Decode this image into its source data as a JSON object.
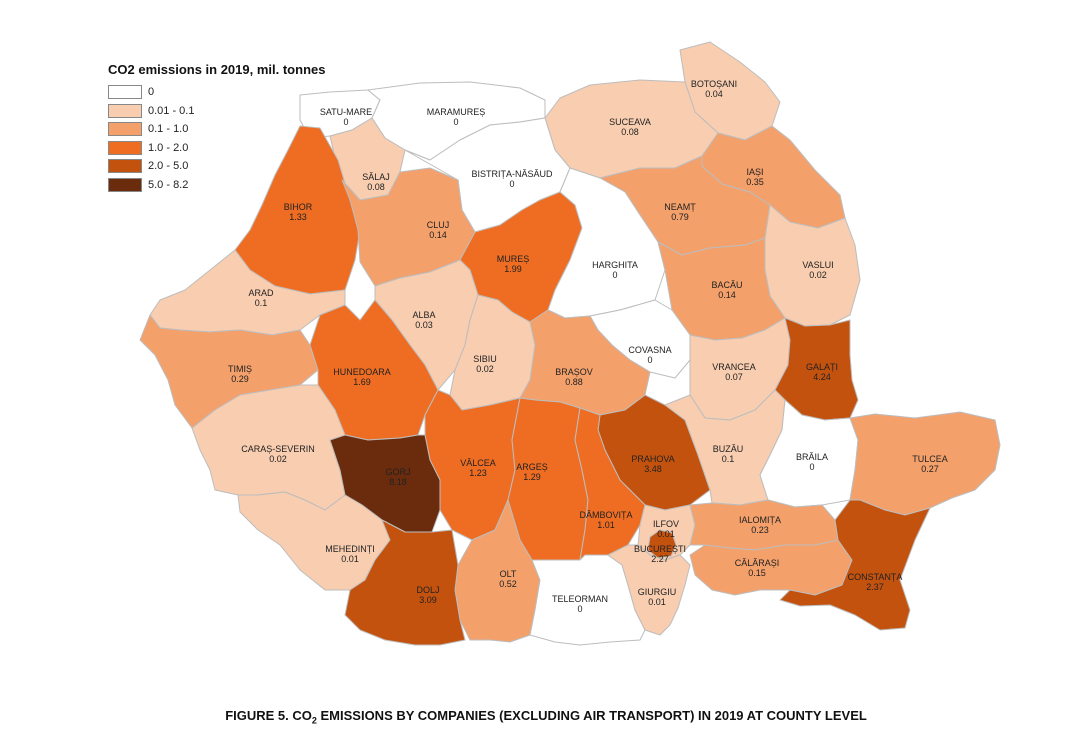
{
  "legend": {
    "title": "CO2 emissions in 2019, mil. tonnes",
    "classes": [
      {
        "label": "0",
        "color": "#ffffff"
      },
      {
        "label": "0.01 - 0.1",
        "color": "#f8cdb0"
      },
      {
        "label": "0.1 - 1.0",
        "color": "#f3a06b"
      },
      {
        "label": "1.0 - 2.0",
        "color": "#ee6d22"
      },
      {
        "label": "2.0 - 5.0",
        "color": "#c4520f"
      },
      {
        "label": "5.0 - 8.2",
        "color": "#6b2c0d"
      }
    ]
  },
  "counties": [
    {
      "id": "satu-mare",
      "name": "SATU-MARE",
      "value": "0",
      "cls": 0
    },
    {
      "id": "maramures",
      "name": "MARAMUREȘ",
      "value": "0",
      "cls": 0
    },
    {
      "id": "botosani",
      "name": "BOTOȘANI",
      "value": "0.04",
      "cls": 1
    },
    {
      "id": "suceava",
      "name": "SUCEAVA",
      "value": "0.08",
      "cls": 1
    },
    {
      "id": "salaj",
      "name": "SĂLAJ",
      "value": "0.08",
      "cls": 1
    },
    {
      "id": "bistrita",
      "name": "BISTRIȚA-NĂSĂUD",
      "value": "0",
      "cls": 0
    },
    {
      "id": "bihor",
      "name": "BIHOR",
      "value": "1.33",
      "cls": 3
    },
    {
      "id": "cluj",
      "name": "CLUJ",
      "value": "0.14",
      "cls": 2
    },
    {
      "id": "iasi",
      "name": "IAȘI",
      "value": "0.35",
      "cls": 2
    },
    {
      "id": "neamt",
      "name": "NEAMȚ",
      "value": "0.79",
      "cls": 2
    },
    {
      "id": "mures",
      "name": "MUREȘ",
      "value": "1.99",
      "cls": 3
    },
    {
      "id": "harghita",
      "name": "HARGHITA",
      "value": "0",
      "cls": 0
    },
    {
      "id": "vaslui",
      "name": "VASLUI",
      "value": "0.02",
      "cls": 1
    },
    {
      "id": "arad",
      "name": "ARAD",
      "value": "0.1",
      "cls": 1
    },
    {
      "id": "bacau",
      "name": "BACĂU",
      "value": "0.14",
      "cls": 2
    },
    {
      "id": "alba",
      "name": "ALBA",
      "value": "0.03",
      "cls": 1
    },
    {
      "id": "covasna",
      "name": "COVASNA",
      "value": "0",
      "cls": 0
    },
    {
      "id": "sibiu",
      "name": "SIBIU",
      "value": "0.02",
      "cls": 1
    },
    {
      "id": "timis",
      "name": "TIMIȘ",
      "value": "0.29",
      "cls": 2
    },
    {
      "id": "hunedoara",
      "name": "HUNEDOARA",
      "value": "1.69",
      "cls": 3
    },
    {
      "id": "brasov",
      "name": "BRAȘOV",
      "value": "0.88",
      "cls": 2
    },
    {
      "id": "vrancea",
      "name": "VRANCEA",
      "value": "0.07",
      "cls": 1
    },
    {
      "id": "galati",
      "name": "GALAȚI",
      "value": "4.24",
      "cls": 4
    },
    {
      "id": "caras",
      "name": "CARAȘ-SEVERIN",
      "value": "0.02",
      "cls": 1
    },
    {
      "id": "valcea",
      "name": "VÂLCEA",
      "value": "1.23",
      "cls": 3
    },
    {
      "id": "arges",
      "name": "ARGEȘ",
      "value": "1.29",
      "cls": 3
    },
    {
      "id": "prahova",
      "name": "PRAHOVA",
      "value": "3.48",
      "cls": 4
    },
    {
      "id": "buzau",
      "name": "BUZĂU",
      "value": "0.1",
      "cls": 1
    },
    {
      "id": "braila",
      "name": "BRĂILA",
      "value": "0",
      "cls": 0
    },
    {
      "id": "tulcea",
      "name": "TULCEA",
      "value": "0.27",
      "cls": 2
    },
    {
      "id": "gorj",
      "name": "GORJ",
      "value": "8.18",
      "cls": 5
    },
    {
      "id": "dambovita",
      "name": "DÂMBOVIȚA",
      "value": "1.01",
      "cls": 3
    },
    {
      "id": "ilfov",
      "name": "ILFOV",
      "value": "0.01",
      "cls": 1
    },
    {
      "id": "ialomita",
      "name": "IALOMIȚA",
      "value": "0.23",
      "cls": 2
    },
    {
      "id": "bucuresti",
      "name": "BUCUREȘTI",
      "value": "2.27",
      "cls": 4
    },
    {
      "id": "mehedinti",
      "name": "MEHEDINȚI",
      "value": "0.01",
      "cls": 1
    },
    {
      "id": "calarasi",
      "name": "CĂLĂRAȘI",
      "value": "0.15",
      "cls": 2
    },
    {
      "id": "olt",
      "name": "OLT",
      "value": "0.52",
      "cls": 2
    },
    {
      "id": "dolj",
      "name": "DOLJ",
      "value": "3.09",
      "cls": 4
    },
    {
      "id": "constanta",
      "name": "CONSTANȚA",
      "value": "2.37",
      "cls": 4
    },
    {
      "id": "teleorman",
      "name": "TELEORMAN",
      "value": "0",
      "cls": 0
    },
    {
      "id": "giurgiu",
      "name": "GIURGIU",
      "value": "0.01",
      "cls": 1
    }
  ],
  "caption": {
    "prefix": "FIGURE 5. CO",
    "sub": "2",
    "suffix": " EMISSIONS BY COMPANIES (EXCLUDING AIR TRANSPORT) IN 2019 AT COUNTY LEVEL"
  }
}
